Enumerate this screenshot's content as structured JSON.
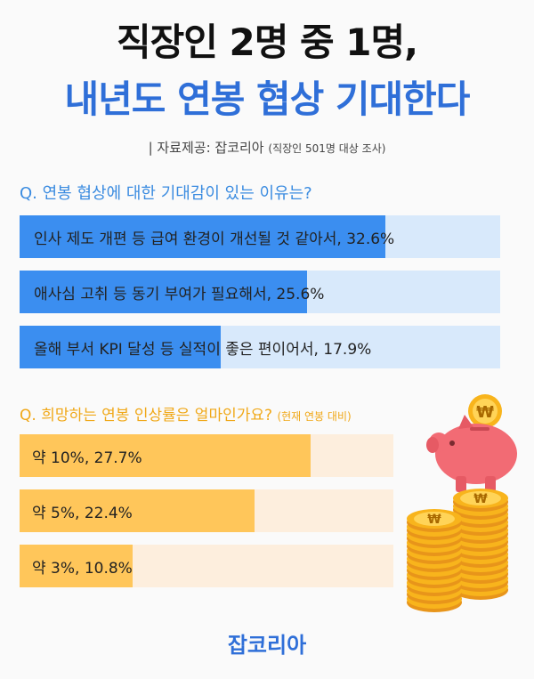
{
  "header": {
    "title_line1": "직장인 2명 중 1명,",
    "title_line2": "내년도 연봉 협상 기대한다",
    "source": "| 자료제공: 잡코리아",
    "source_note": "(직장인 501명 대상 조사)"
  },
  "colors": {
    "blue_fill": "#3b8ef0",
    "blue_track": "#d8e9fb",
    "orange_fill": "#ffc65a",
    "orange_track": "#fdeedd",
    "title_blue": "#2f6fd8",
    "q2_color": "#f0a818"
  },
  "chart_data": [
    {
      "type": "bar",
      "orientation": "horizontal",
      "title": "Q. 연봉 협상에 대한 기대감이 있는 이유는?",
      "unit": "%",
      "categories": [
        "인사 제도 개편 등 급여 환경이 개선될 것 같아서",
        "애사심 고취 등 동기 부여가 필요해서",
        "올해 부서 KPI 달성 등 실적이 좋은 편이어서"
      ],
      "values": [
        32.6,
        25.6,
        17.9
      ],
      "labels": [
        "인사 제도 개편 등 급여 환경이 개선될 것 같아서, 32.6%",
        "애사심 고취 등 동기 부여가 필요해서, 25.6%",
        "올해 부서 KPI 달성 등 실적이 좋은 편이어서, 17.9%"
      ]
    },
    {
      "type": "bar",
      "orientation": "horizontal",
      "title": "Q. 희망하는 연봉 인상률은 얼마인가요?",
      "subtitle": "(현재 연봉 대비)",
      "unit": "%",
      "categories": [
        "약 10%",
        "약 5%",
        "약 3%"
      ],
      "values": [
        27.7,
        22.4,
        10.8
      ],
      "labels": [
        "약 10%, 27.7%",
        "약 5%, 22.4%",
        "약 3%, 10.8%"
      ]
    }
  ],
  "footer": {
    "logo_text": "잡코리아"
  },
  "decorations": {
    "icons": [
      "piggy-bank-icon",
      "won-coin-stack-icon",
      "won-coin-icon"
    ],
    "coin_symbol": "₩"
  }
}
